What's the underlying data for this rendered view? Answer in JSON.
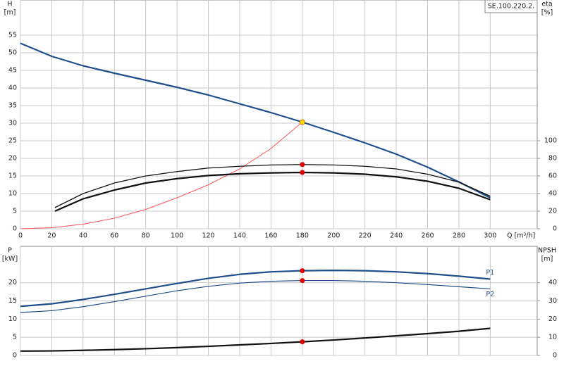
{
  "chart_data": [
    {
      "type": "line",
      "ylabel": "H",
      "yunit": "[m]",
      "y2label": "eta",
      "y2unit": "[%]",
      "model": "SE.100.220.2.",
      "xlabel": "Q [m³/h]",
      "xlim": [
        0,
        330
      ],
      "xticks": [
        0,
        20,
        40,
        60,
        80,
        100,
        120,
        140,
        160,
        180,
        200,
        220,
        240,
        260,
        280,
        300
      ],
      "ylim": [
        0,
        65
      ],
      "yticks": [
        0,
        5,
        10,
        15,
        20,
        25,
        30,
        35,
        40,
        45,
        50,
        55
      ],
      "y2lim": [
        0,
        260
      ],
      "y2ticks": [
        0,
        20,
        40,
        60,
        80,
        100
      ],
      "grid": true,
      "series": [
        {
          "color": "#1f4e8c",
          "width": 2.2,
          "x": [
            0,
            20,
            40,
            60,
            80,
            100,
            120,
            140,
            160,
            180,
            200,
            220,
            240,
            260,
            280,
            300
          ],
          "values": [
            52.7,
            49,
            46.3,
            44.2,
            42.2,
            40.2,
            38,
            35.5,
            33,
            30.3,
            27.4,
            24.4,
            21.2,
            17.5,
            13.3,
            8.8
          ]
        },
        {
          "color": "#ff5555",
          "width": 1,
          "x": [
            0,
            20,
            40,
            60,
            80,
            100,
            120,
            140,
            160,
            180
          ],
          "values": [
            0,
            0.3,
            1.3,
            3,
            5.5,
            8.8,
            12.5,
            17,
            22.8,
            30.3
          ]
        },
        {
          "color": "#111111",
          "width": 1.3,
          "axis": "y2",
          "x": [
            22,
            40,
            60,
            80,
            100,
            120,
            140,
            160,
            180,
            200,
            220,
            240,
            260,
            280,
            300
          ],
          "values": [
            24,
            40,
            52,
            60,
            65,
            69,
            71,
            72.5,
            73,
            72.5,
            71,
            68,
            62,
            53,
            37
          ]
        },
        {
          "color": "#111111",
          "width": 2.2,
          "axis": "y2",
          "x": [
            22,
            40,
            60,
            80,
            100,
            120,
            140,
            160,
            180,
            200,
            220,
            240,
            260,
            280,
            300
          ],
          "values": [
            20,
            34,
            44,
            52,
            57,
            60.5,
            62.5,
            63.5,
            64,
            63.5,
            62,
            59,
            54,
            46,
            33
          ]
        },
        {
          "marker": "point",
          "color": "#ffd700",
          "x": [
            180
          ],
          "values": [
            30.3
          ]
        },
        {
          "marker": "point",
          "color": "#e00000",
          "axis": "y2",
          "x": [
            180,
            180
          ],
          "values": [
            73,
            64
          ]
        }
      ]
    },
    {
      "type": "line",
      "ylabel": "P",
      "yunit": "[kW]",
      "y2label": "NPSH",
      "y2unit": "[m]",
      "xlim": [
        0,
        330
      ],
      "ylim": [
        0,
        30
      ],
      "yticks": [
        0,
        5,
        10,
        15,
        20
      ],
      "y2lim": [
        0,
        60
      ],
      "y2ticks": [
        0,
        10,
        20,
        30,
        40
      ],
      "grid": true,
      "series": [
        {
          "name": "P1",
          "color": "#1f4e8c",
          "width": 2.2,
          "x": [
            0,
            20,
            40,
            60,
            80,
            100,
            120,
            140,
            160,
            180,
            200,
            220,
            240,
            260,
            280,
            300
          ],
          "values": [
            13.5,
            14.2,
            15.4,
            16.8,
            18.3,
            19.8,
            21.2,
            22.3,
            23,
            23.3,
            23.4,
            23.3,
            23,
            22.5,
            21.8,
            21
          ]
        },
        {
          "name": "P2",
          "color": "#1f4e8c",
          "width": 1.2,
          "x": [
            0,
            20,
            40,
            60,
            80,
            100,
            120,
            140,
            160,
            180,
            200,
            220,
            240,
            260,
            280,
            300
          ],
          "values": [
            11.8,
            12.3,
            13.4,
            14.8,
            16.3,
            17.8,
            19,
            19.9,
            20.4,
            20.6,
            20.6,
            20.4,
            20,
            19.5,
            18.9,
            18.3
          ]
        },
        {
          "color": "#111111",
          "width": 2.2,
          "axis": "y2",
          "x": [
            0,
            20,
            40,
            60,
            80,
            100,
            120,
            140,
            160,
            180,
            200,
            220,
            240,
            260,
            280,
            300
          ],
          "values": [
            2.4,
            2.5,
            2.8,
            3.2,
            3.7,
            4.3,
            5,
            5.8,
            6.6,
            7.5,
            8.5,
            9.6,
            10.8,
            12,
            13.3,
            14.9
          ]
        },
        {
          "marker": "point",
          "color": "#e00000",
          "x": [
            180,
            180
          ],
          "values": [
            23.3,
            20.6
          ]
        },
        {
          "marker": "point",
          "color": "#e00000",
          "axis": "y2",
          "x": [
            180
          ],
          "values": [
            7.5
          ]
        }
      ]
    }
  ]
}
